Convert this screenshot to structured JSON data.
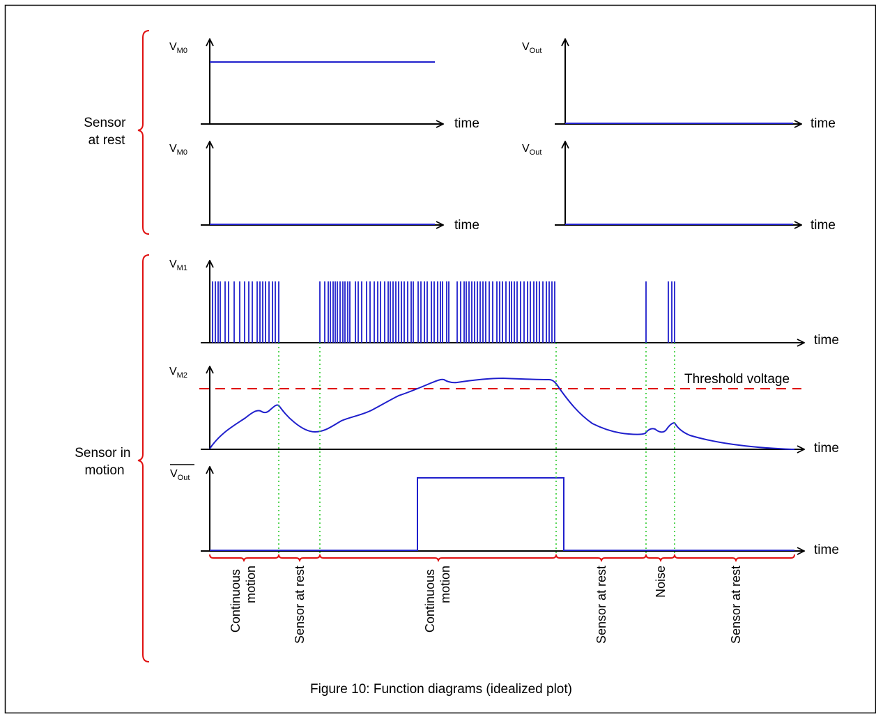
{
  "colors": {
    "signal": "#1f1fcc",
    "brace": "#e01010",
    "threshold": "#e01010",
    "guide": "#2ecc2e",
    "axis": "#000000",
    "frame": "#000000"
  },
  "groups": {
    "rest": [
      "Sensor",
      "at rest"
    ],
    "motion": [
      "Sensor in",
      "motion"
    ]
  },
  "axis_time_label": "time",
  "axis_vm0": {
    "main": "V",
    "sub": "M0"
  },
  "axis_vout": {
    "main": "V",
    "sub": "Out"
  },
  "axis_vm1": {
    "main": "V",
    "sub": "M1"
  },
  "axis_vm2": {
    "main": "V",
    "sub": "M2"
  },
  "axis_vout_bar": {
    "main": "V",
    "sub": "Out"
  },
  "threshold_label": "Threshold voltage",
  "phases": [
    [
      "Continuous",
      "motion"
    ],
    [
      "Sensor at rest"
    ],
    [
      "Continuous",
      "motion"
    ],
    [
      "Sensor at rest"
    ],
    [
      "Noise"
    ],
    [
      "Sensor at rest"
    ]
  ],
  "caption": "Figure 10: Function diagrams (idealized plot)",
  "signals": {
    "rest_vm0_top": "high",
    "rest_vout_top": "low",
    "rest_vm0_bottom": "low",
    "rest_vout_bottom": "low",
    "vout_bar_pulse": "high while V_M2 is above the threshold voltage"
  }
}
